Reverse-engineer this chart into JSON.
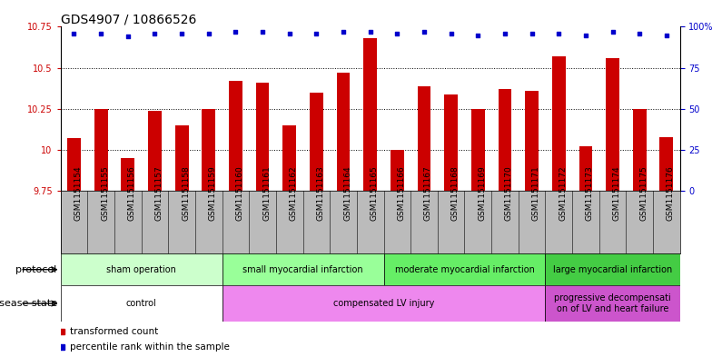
{
  "title": "GDS4907 / 10866526",
  "samples": [
    "GSM1151154",
    "GSM1151155",
    "GSM1151156",
    "GSM1151157",
    "GSM1151158",
    "GSM1151159",
    "GSM1151160",
    "GSM1151161",
    "GSM1151162",
    "GSM1151163",
    "GSM1151164",
    "GSM1151165",
    "GSM1151166",
    "GSM1151167",
    "GSM1151168",
    "GSM1151169",
    "GSM1151170",
    "GSM1151171",
    "GSM1151172",
    "GSM1151173",
    "GSM1151174",
    "GSM1151175",
    "GSM1151176"
  ],
  "bar_values": [
    10.07,
    10.25,
    9.95,
    10.24,
    10.15,
    10.25,
    10.42,
    10.41,
    10.15,
    10.35,
    10.47,
    10.68,
    10.0,
    10.39,
    10.34,
    10.25,
    10.37,
    10.36,
    10.57,
    10.02,
    10.56,
    10.25,
    10.08
  ],
  "percentile_values": [
    96,
    96,
    94,
    96,
    96,
    96,
    97,
    97,
    96,
    96,
    97,
    97,
    96,
    97,
    96,
    95,
    96,
    96,
    96,
    95,
    97,
    96,
    95
  ],
  "bar_color": "#cc0000",
  "dot_color": "#0000cc",
  "ylim_left": [
    9.75,
    10.75
  ],
  "ylim_right": [
    0,
    100
  ],
  "yticks_left": [
    9.75,
    10.0,
    10.25,
    10.5,
    10.75
  ],
  "ytick_labels_left": [
    "9.75",
    "10",
    "10.25",
    "10.5",
    "10.75"
  ],
  "yticks_right": [
    0,
    25,
    50,
    75,
    100
  ],
  "ytick_labels_right": [
    "0",
    "25",
    "50",
    "75",
    "100%"
  ],
  "dotted_lines": [
    10.0,
    10.25,
    10.5
  ],
  "protocol_label": "protocol",
  "disease_label": "disease state",
  "protocol_groups": [
    {
      "label": "sham operation",
      "start": 0,
      "end": 5,
      "color": "#ccffcc"
    },
    {
      "label": "small myocardial infarction",
      "start": 6,
      "end": 11,
      "color": "#99ff99"
    },
    {
      "label": "moderate myocardial infarction",
      "start": 12,
      "end": 17,
      "color": "#66ee66"
    },
    {
      "label": "large myocardial infarction",
      "start": 18,
      "end": 22,
      "color": "#44cc44"
    }
  ],
  "disease_groups": [
    {
      "label": "control",
      "start": 0,
      "end": 5,
      "color": "#ffffff"
    },
    {
      "label": "compensated LV injury",
      "start": 6,
      "end": 17,
      "color": "#ee88ee"
    },
    {
      "label": "progressive decompensati\non of LV and heart failure",
      "start": 18,
      "end": 22,
      "color": "#cc55cc"
    }
  ],
  "legend_items": [
    {
      "label": "transformed count",
      "color": "#cc0000"
    },
    {
      "label": "percentile rank within the sample",
      "color": "#0000cc"
    }
  ],
  "xtick_bg_color": "#bbbbbb",
  "background_color": "#ffffff",
  "title_fontsize": 10,
  "tick_fontsize": 7,
  "label_fontsize": 8,
  "bar_width": 0.5
}
